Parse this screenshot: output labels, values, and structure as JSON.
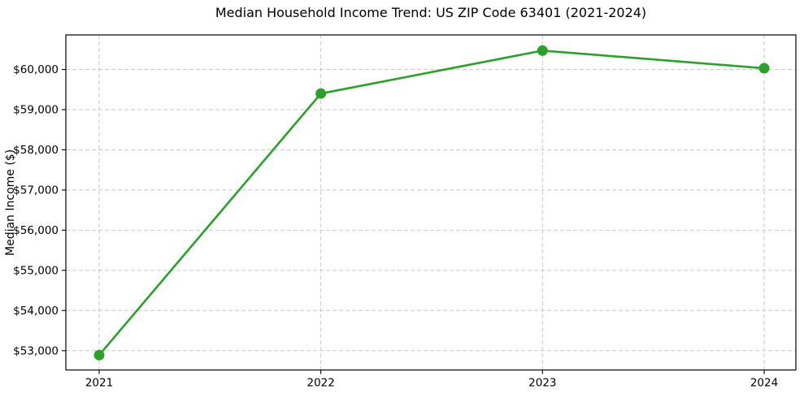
{
  "chart_data": {
    "type": "line",
    "title": "Median Household Income Trend: US ZIP Code 63401 (2021-2024)",
    "ylabel": "Median Income ($)",
    "xlabel": "",
    "categories": [
      "2021",
      "2022",
      "2023",
      "2024"
    ],
    "series": [
      {
        "name": "Median Household Income",
        "values": [
          52890,
          59400,
          60470,
          60030
        ]
      }
    ],
    "ytick_values": [
      53000,
      54000,
      55000,
      56000,
      57000,
      58000,
      59000,
      60000
    ],
    "ytick_labels": [
      "$53,000",
      "$54,000",
      "$55,000",
      "$56,000",
      "$57,000",
      "$58,000",
      "$59,000",
      "$60,000"
    ],
    "ylim": [
      52520,
      60860
    ],
    "grid": true,
    "grid_style": "dashed",
    "legend": false,
    "line_color": "#2ca02c",
    "marker": "circle",
    "gridline_color": "#c9c9c9",
    "background_color": "#ffffff"
  }
}
